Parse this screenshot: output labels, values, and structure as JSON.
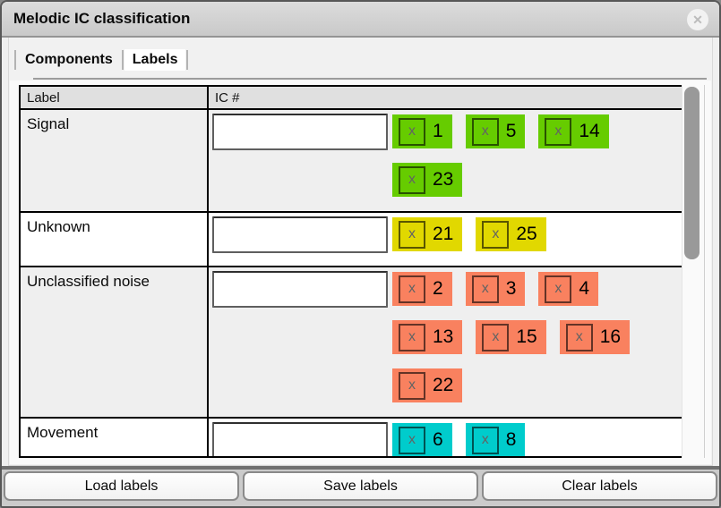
{
  "window": {
    "title": "Melodic IC classification",
    "close_glyph": "✕"
  },
  "tabs": {
    "items": [
      {
        "label": "Components",
        "selected": false
      },
      {
        "label": "Labels",
        "selected": true
      }
    ]
  },
  "table": {
    "columns": [
      "Label",
      "IC #"
    ],
    "remove_glyph": "x",
    "rows": [
      {
        "label": "Signal",
        "color": "#66CC00",
        "input_value": "",
        "tag_lines": [
          [
            "1",
            "5",
            "14"
          ],
          [
            "23"
          ]
        ]
      },
      {
        "label": "Unknown",
        "color": "#E1D800",
        "input_value": "",
        "tag_lines": [
          [
            "21",
            "25"
          ]
        ]
      },
      {
        "label": "Unclassified noise",
        "color": "#F9815F",
        "input_value": "",
        "tag_lines": [
          [
            "2",
            "3",
            "4"
          ],
          [
            "13",
            "15",
            "16"
          ],
          [
            "22"
          ]
        ]
      },
      {
        "label": "Movement",
        "color": "#00CCCC",
        "input_value": "",
        "tag_lines": [
          [
            "6",
            "8"
          ]
        ]
      }
    ]
  },
  "footer": {
    "buttons": [
      "Load labels",
      "Save labels",
      "Clear labels"
    ]
  }
}
